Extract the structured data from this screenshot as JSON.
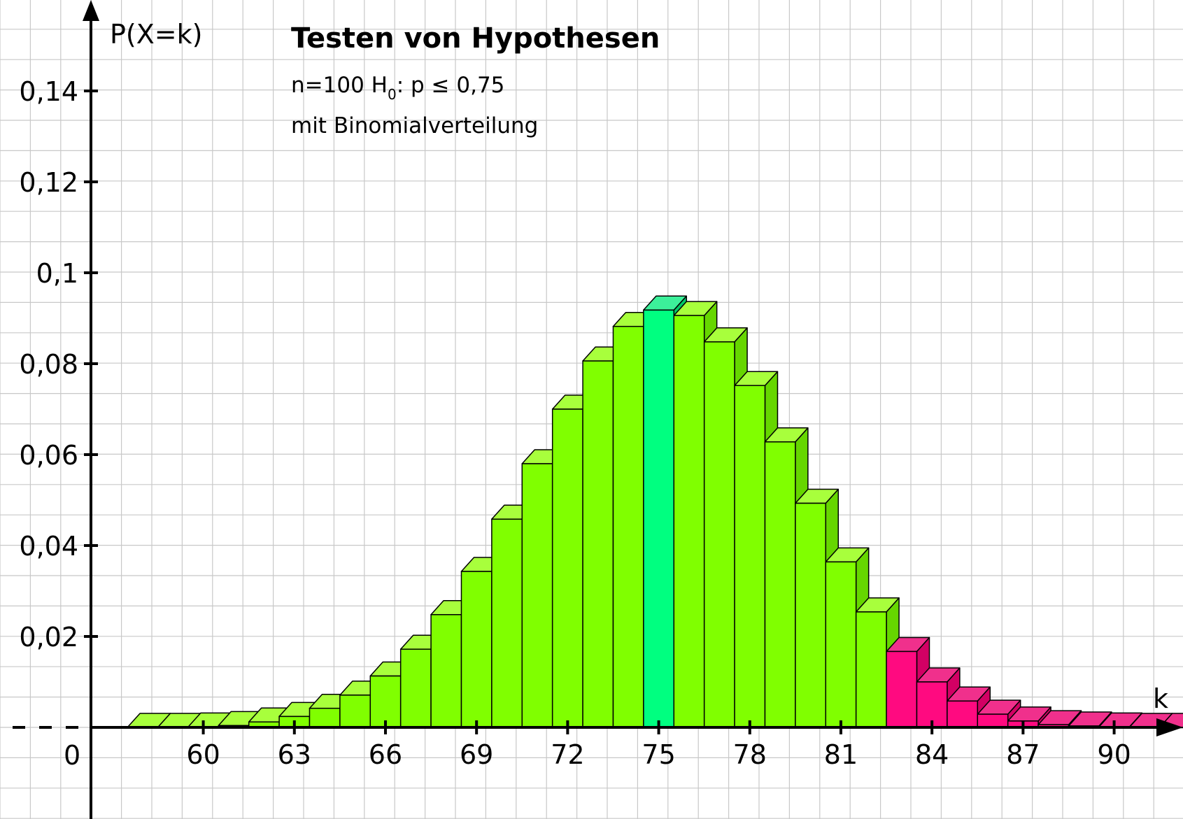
{
  "chart_data": {
    "type": "bar",
    "title": "Testen von Hypothesen",
    "subtitle_main": "n=100  H",
    "subtitle_sub": "0",
    "subtitle_rest": ": p ≤ 0,75",
    "subtitle_line2": "mit Binomialverteilung",
    "ylabel": "P(X=k)",
    "xlabel": "k",
    "origin_label": "0",
    "y_ticks": [
      "0,02",
      "0,04",
      "0,06",
      "0,08",
      "0,1",
      "0,12",
      "0,14"
    ],
    "y_tick_values": [
      0.02,
      0.04,
      0.06,
      0.08,
      0.1,
      0.12,
      0.14
    ],
    "x_ticks": [
      "60",
      "63",
      "66",
      "69",
      "72",
      "75",
      "78",
      "81",
      "84",
      "87",
      "90"
    ],
    "x_tick_values": [
      60,
      63,
      66,
      69,
      72,
      75,
      78,
      81,
      84,
      87,
      90
    ],
    "xlim": [
      56.3,
      94.6
    ],
    "ylim": [
      -0.02,
      0.16
    ],
    "grid": true,
    "k": [
      58,
      59,
      60,
      61,
      62,
      63,
      64,
      65,
      66,
      67,
      68,
      69,
      70,
      71,
      72,
      73,
      74,
      75,
      76,
      77,
      78,
      79,
      80,
      81,
      82,
      83,
      84,
      85,
      86,
      87,
      88,
      89,
      90,
      91,
      92
    ],
    "values": [
      0.0,
      0.0,
      0.0001,
      0.0004,
      0.0012,
      0.0024,
      0.0042,
      0.0071,
      0.0113,
      0.0172,
      0.0248,
      0.0343,
      0.0458,
      0.058,
      0.07,
      0.0806,
      0.0882,
      0.0918,
      0.0906,
      0.0848,
      0.0752,
      0.0628,
      0.0493,
      0.0364,
      0.0254,
      0.0167,
      0.01,
      0.0058,
      0.0029,
      0.0014,
      0.0006,
      0.0003,
      0.0001,
      0.0,
      0.0
    ],
    "highlight_k": 75,
    "rejection_from_k": 83,
    "colors": {
      "accept_front": "#80ff00",
      "accept_top": "#a8ff3c",
      "accept_side": "#66d600",
      "center_front": "#00ff80",
      "center_top": "#3cf09a",
      "center_side": "#00c866",
      "reject_front": "#ff0a80",
      "reject_top": "#f0308c",
      "reject_side": "#d20064",
      "grid": "#c8c8c8",
      "axis": "#000000"
    }
  }
}
